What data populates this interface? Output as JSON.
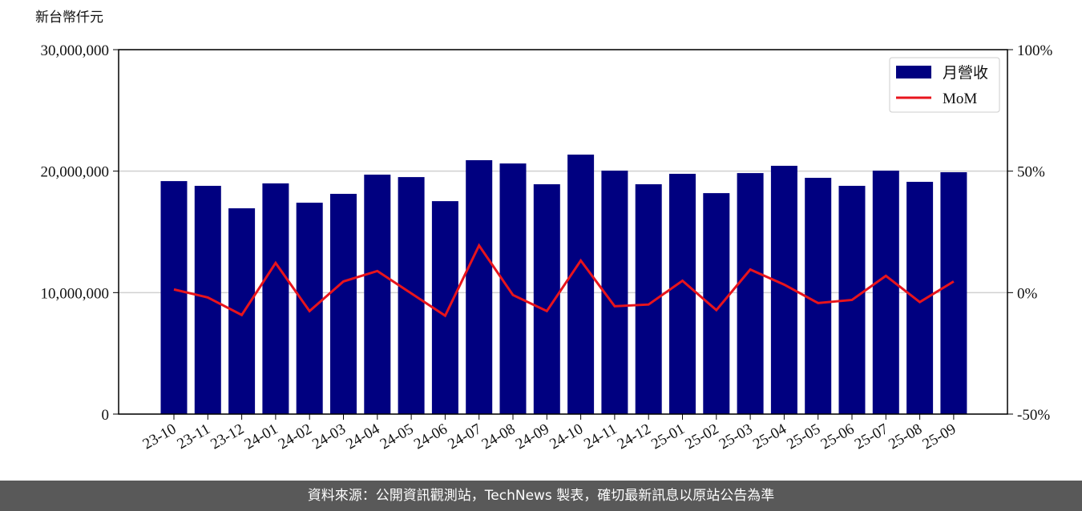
{
  "chart_data": {
    "type": "bar_line",
    "y_label": "新台幣仟元",
    "categories": [
      "23-10",
      "23-11",
      "23-12",
      "24-01",
      "24-02",
      "24-03",
      "24-04",
      "24-05",
      "24-06",
      "24-07",
      "24-08",
      "24-09",
      "24-10",
      "24-11",
      "24-12",
      "25-01",
      "25-02",
      "25-03",
      "25-04",
      "25-05",
      "25-06",
      "25-07",
      "25-08",
      "25-09"
    ],
    "series": [
      {
        "name": "月營收",
        "type": "bar",
        "color": "#000080",
        "values": [
          19180000,
          18790000,
          16940000,
          18990000,
          17400000,
          18130000,
          19710000,
          19510000,
          17530000,
          20900000,
          20630000,
          18920000,
          21360000,
          20040000,
          18920000,
          19780000,
          18190000,
          19840000,
          20440000,
          19450000,
          18790000,
          20040000,
          19120000,
          19910000
        ]
      },
      {
        "name": "MoM",
        "type": "line",
        "axis": "y2",
        "color": "#e8141c",
        "values": [
          1.3,
          -2.0,
          -9.2,
          12.2,
          -7.6,
          4.6,
          8.9,
          -0.3,
          -9.5,
          19.4,
          -1.0,
          -7.6,
          13.2,
          -5.6,
          -4.9,
          4.9,
          -7.2,
          9.5,
          3.3,
          -4.3,
          -3.0,
          6.9,
          -3.9,
          4.6
        ]
      }
    ],
    "ylim": [
      0,
      30000000
    ],
    "yticks": [
      0,
      {
        "value": 10000000,
        "label": "10,000,000"
      },
      {
        "value": 20000000,
        "label": "20,000,000"
      },
      {
        "value": 30000000,
        "label": "30,000,000"
      }
    ],
    "y2lim": [
      -50,
      100
    ],
    "y2ticks": [
      {
        "value": -50,
        "label": "-50%"
      },
      {
        "value": 0,
        "label": "0%"
      },
      {
        "value": 50,
        "label": "50%"
      },
      {
        "value": 100,
        "label": "100%"
      }
    ],
    "grid": true,
    "legend": "upper right"
  },
  "footer": "資料來源：公開資訊觀測站，TechNews 製表，確切最新訊息以原站公告為準"
}
